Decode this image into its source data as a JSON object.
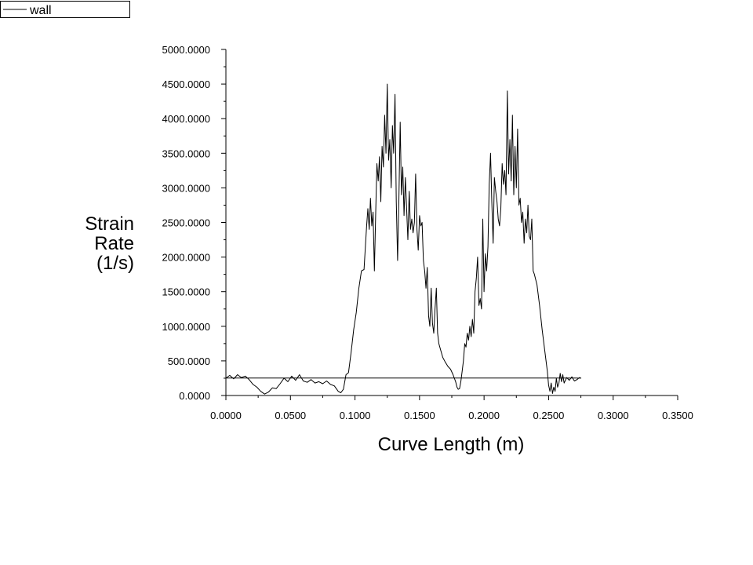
{
  "chart_data": {
    "type": "line",
    "xlabel": "Curve Length (m)",
    "ylabel": [
      "Strain",
      "Rate",
      "(1/s)"
    ],
    "xlim": [
      0,
      0.35
    ],
    "ylim": [
      0,
      5000
    ],
    "x_ticks": [
      0,
      0.05,
      0.1,
      0.15,
      0.2,
      0.25,
      0.3,
      0.35
    ],
    "x_tick_labels": [
      "0.0000",
      "0.0500",
      "0.1000",
      "0.1500",
      "0.2000",
      "0.2500",
      "0.3000",
      "0.3500"
    ],
    "y_ticks": [
      0,
      500,
      1000,
      1500,
      2000,
      2500,
      3000,
      3500,
      4000,
      4500,
      5000
    ],
    "y_tick_labels": [
      "0.0000",
      "500.0000",
      "1000.0000",
      "1500.0000",
      "2000.0000",
      "2500.0000",
      "3000.0000",
      "3500.0000",
      "4000.0000",
      "4500.0000",
      "5000.0000"
    ],
    "legend": {
      "placement": "top-left"
    },
    "grid": false,
    "series": [
      {
        "name": "wall",
        "color": "#000000",
        "points": [
          [
            0.0,
            250
          ],
          [
            0.003,
            290
          ],
          [
            0.006,
            240
          ],
          [
            0.009,
            300
          ],
          [
            0.012,
            260
          ],
          [
            0.015,
            280
          ],
          [
            0.018,
            230
          ],
          [
            0.021,
            160
          ],
          [
            0.024,
            120
          ],
          [
            0.027,
            60
          ],
          [
            0.03,
            20
          ],
          [
            0.033,
            50
          ],
          [
            0.036,
            110
          ],
          [
            0.039,
            100
          ],
          [
            0.042,
            170
          ],
          [
            0.045,
            250
          ],
          [
            0.048,
            200
          ],
          [
            0.051,
            280
          ],
          [
            0.054,
            220
          ],
          [
            0.057,
            300
          ],
          [
            0.06,
            210
          ],
          [
            0.063,
            190
          ],
          [
            0.066,
            230
          ],
          [
            0.069,
            180
          ],
          [
            0.072,
            200
          ],
          [
            0.075,
            170
          ],
          [
            0.078,
            210
          ],
          [
            0.081,
            160
          ],
          [
            0.084,
            140
          ],
          [
            0.087,
            60
          ],
          [
            0.089,
            40
          ],
          [
            0.091,
            90
          ],
          [
            0.093,
            300
          ],
          [
            0.095,
            330
          ],
          [
            0.097,
            620
          ],
          [
            0.099,
            950
          ],
          [
            0.101,
            1200
          ],
          [
            0.103,
            1550
          ],
          [
            0.105,
            1800
          ],
          [
            0.107,
            1820
          ],
          [
            0.109,
            2450
          ],
          [
            0.11,
            2700
          ],
          [
            0.111,
            2400
          ],
          [
            0.112,
            2850
          ],
          [
            0.113,
            2450
          ],
          [
            0.114,
            2650
          ],
          [
            0.115,
            1800
          ],
          [
            0.116,
            2600
          ],
          [
            0.117,
            3350
          ],
          [
            0.118,
            3100
          ],
          [
            0.119,
            3450
          ],
          [
            0.12,
            2800
          ],
          [
            0.121,
            3600
          ],
          [
            0.122,
            3300
          ],
          [
            0.123,
            4050
          ],
          [
            0.124,
            3500
          ],
          [
            0.125,
            4500
          ],
          [
            0.126,
            3400
          ],
          [
            0.127,
            3700
          ],
          [
            0.128,
            3000
          ],
          [
            0.129,
            3900
          ],
          [
            0.13,
            3500
          ],
          [
            0.131,
            4350
          ],
          [
            0.132,
            2800
          ],
          [
            0.133,
            1950
          ],
          [
            0.134,
            2800
          ],
          [
            0.135,
            3950
          ],
          [
            0.136,
            2900
          ],
          [
            0.137,
            3300
          ],
          [
            0.138,
            2600
          ],
          [
            0.139,
            3150
          ],
          [
            0.14,
            2700
          ],
          [
            0.141,
            2250
          ],
          [
            0.142,
            2950
          ],
          [
            0.143,
            2400
          ],
          [
            0.144,
            2550
          ],
          [
            0.145,
            2350
          ],
          [
            0.146,
            2500
          ],
          [
            0.147,
            3200
          ],
          [
            0.148,
            2400
          ],
          [
            0.149,
            2100
          ],
          [
            0.15,
            2600
          ],
          [
            0.151,
            2450
          ],
          [
            0.152,
            2500
          ],
          [
            0.153,
            1950
          ],
          [
            0.154,
            1800
          ],
          [
            0.155,
            1550
          ],
          [
            0.156,
            1850
          ],
          [
            0.157,
            1150
          ],
          [
            0.158,
            1000
          ],
          [
            0.159,
            1550
          ],
          [
            0.16,
            1050
          ],
          [
            0.161,
            900
          ],
          [
            0.162,
            1250
          ],
          [
            0.163,
            1550
          ],
          [
            0.164,
            900
          ],
          [
            0.165,
            750
          ],
          [
            0.166,
            680
          ],
          [
            0.168,
            550
          ],
          [
            0.17,
            480
          ],
          [
            0.172,
            420
          ],
          [
            0.174,
            380
          ],
          [
            0.176,
            300
          ],
          [
            0.178,
            200
          ],
          [
            0.179,
            120
          ],
          [
            0.18,
            90
          ],
          [
            0.181,
            100
          ],
          [
            0.182,
            200
          ],
          [
            0.183,
            350
          ],
          [
            0.184,
            500
          ],
          [
            0.185,
            750
          ],
          [
            0.186,
            700
          ],
          [
            0.187,
            900
          ],
          [
            0.188,
            800
          ],
          [
            0.189,
            1000
          ],
          [
            0.19,
            850
          ],
          [
            0.191,
            1100
          ],
          [
            0.192,
            900
          ],
          [
            0.193,
            1500
          ],
          [
            0.194,
            1700
          ],
          [
            0.195,
            2000
          ],
          [
            0.196,
            1300
          ],
          [
            0.197,
            1400
          ],
          [
            0.198,
            1250
          ],
          [
            0.199,
            2550
          ],
          [
            0.2,
            1500
          ],
          [
            0.201,
            2050
          ],
          [
            0.202,
            1800
          ],
          [
            0.203,
            2150
          ],
          [
            0.204,
            3050
          ],
          [
            0.205,
            3500
          ],
          [
            0.206,
            2800
          ],
          [
            0.207,
            2200
          ],
          [
            0.208,
            3150
          ],
          [
            0.209,
            2950
          ],
          [
            0.21,
            2800
          ],
          [
            0.211,
            2550
          ],
          [
            0.212,
            2450
          ],
          [
            0.213,
            2700
          ],
          [
            0.214,
            3350
          ],
          [
            0.215,
            3050
          ],
          [
            0.216,
            3250
          ],
          [
            0.217,
            2900
          ],
          [
            0.218,
            4400
          ],
          [
            0.219,
            3200
          ],
          [
            0.22,
            3700
          ],
          [
            0.221,
            3100
          ],
          [
            0.222,
            4050
          ],
          [
            0.223,
            2900
          ],
          [
            0.224,
            3600
          ],
          [
            0.225,
            3000
          ],
          [
            0.226,
            3850
          ],
          [
            0.227,
            2750
          ],
          [
            0.228,
            2850
          ],
          [
            0.229,
            2500
          ],
          [
            0.23,
            2650
          ],
          [
            0.231,
            2200
          ],
          [
            0.232,
            2550
          ],
          [
            0.233,
            2350
          ],
          [
            0.234,
            2750
          ],
          [
            0.235,
            2300
          ],
          [
            0.236,
            2250
          ],
          [
            0.237,
            2550
          ],
          [
            0.238,
            1800
          ],
          [
            0.239,
            1750
          ],
          [
            0.241,
            1600
          ],
          [
            0.243,
            1300
          ],
          [
            0.245,
            950
          ],
          [
            0.247,
            650
          ],
          [
            0.249,
            350
          ],
          [
            0.25,
            150
          ],
          [
            0.251,
            60
          ],
          [
            0.252,
            180
          ],
          [
            0.253,
            30
          ],
          [
            0.254,
            120
          ],
          [
            0.255,
            60
          ],
          [
            0.256,
            250
          ],
          [
            0.257,
            120
          ],
          [
            0.258,
            180
          ],
          [
            0.259,
            320
          ],
          [
            0.26,
            200
          ],
          [
            0.261,
            300
          ],
          [
            0.262,
            180
          ],
          [
            0.264,
            260
          ],
          [
            0.266,
            220
          ],
          [
            0.268,
            270
          ],
          [
            0.27,
            210
          ],
          [
            0.272,
            230
          ],
          [
            0.274,
            260
          ],
          [
            0.275,
            250
          ],
          [
            0.27,
            252
          ],
          [
            0.22,
            252
          ],
          [
            0.15,
            252
          ],
          [
            0.1,
            252
          ],
          [
            0.05,
            252
          ],
          [
            0.0,
            252
          ]
        ]
      }
    ]
  }
}
